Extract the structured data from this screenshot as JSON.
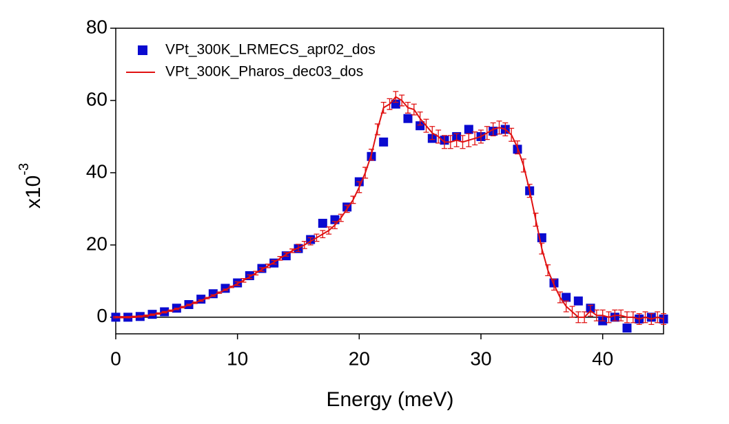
{
  "chart_data": {
    "type": "line",
    "xlabel": "Energy (meV)",
    "ylabel": {
      "base": "x10",
      "exponent": "-3"
    },
    "xlim": [
      0,
      45
    ],
    "xticks": [
      0,
      10,
      20,
      30,
      40
    ],
    "ylim": [
      -4.6,
      80
    ],
    "yticks": [
      0,
      20,
      40,
      60,
      80
    ],
    "zero_line": true,
    "legend": "upper-left",
    "series": [
      {
        "name": "VPt_300K_LRMECS_apr02_dos",
        "color": "#0a0ad0",
        "style": "markers",
        "x": [
          0,
          1,
          2,
          3,
          4,
          5,
          6,
          7,
          8,
          9,
          10,
          11,
          12,
          13,
          14,
          15,
          16,
          17,
          18,
          19,
          20,
          21,
          22,
          23,
          24,
          25,
          26,
          27,
          28,
          29,
          30,
          31,
          32,
          33,
          34,
          35,
          36,
          37,
          38,
          39,
          40,
          41,
          42,
          43,
          44,
          45
        ],
        "values": [
          0,
          0,
          0.2,
          0.8,
          1.5,
          2.5,
          3.5,
          5,
          6.5,
          8,
          9.5,
          11.5,
          13.5,
          15,
          17,
          19,
          21.5,
          26,
          27,
          30.5,
          37.5,
          44.5,
          48.5,
          59,
          55,
          53,
          49.5,
          49,
          50,
          52,
          50,
          51.5,
          52,
          46.5,
          35,
          22,
          9.5,
          5.5,
          4.5,
          2.5,
          -1,
          0,
          -3,
          -0.5,
          0,
          -0.5
        ]
      },
      {
        "name": "VPt_300K_Pharos_dec03_dos",
        "color": "#e01010",
        "style": "line",
        "x": [
          0,
          0.5,
          1,
          1.5,
          2,
          2.5,
          3,
          3.5,
          4,
          4.5,
          5,
          5.5,
          6,
          6.5,
          7,
          7.5,
          8,
          8.5,
          9,
          9.5,
          10,
          10.5,
          11,
          11.5,
          12,
          12.5,
          13,
          13.5,
          14,
          14.5,
          15,
          15.5,
          16,
          16.5,
          17,
          17.5,
          18,
          18.5,
          19,
          19.5,
          20,
          20.5,
          21,
          21.5,
          22,
          22.5,
          23,
          23.5,
          24,
          24.5,
          25,
          25.5,
          26,
          26.5,
          27,
          27.5,
          28,
          28.5,
          29,
          29.5,
          30,
          30.5,
          31,
          31.5,
          32,
          32.5,
          33,
          33.5,
          34,
          34.5,
          35,
          35.5,
          36,
          36.5,
          37,
          37.5,
          38,
          38.5,
          39,
          39.5,
          40,
          40.5,
          41,
          41.5,
          42,
          42.5,
          43,
          43.5,
          44,
          44.5,
          45
        ],
        "values": [
          0,
          0,
          0,
          0.1,
          0.2,
          0.4,
          0.7,
          1,
          1.4,
          1.8,
          2.3,
          2.8,
          3.4,
          4,
          4.6,
          5.3,
          6,
          6.8,
          7.6,
          8.4,
          9.3,
          10.2,
          11.2,
          12.2,
          13.2,
          14.2,
          15.2,
          16.3,
          17.4,
          18.4,
          19.2,
          20,
          21,
          22,
          23,
          24,
          25.5,
          27.5,
          30,
          32.5,
          36,
          40,
          45,
          52,
          58,
          59,
          61,
          60,
          58,
          57.5,
          55,
          53,
          51,
          50,
          48.5,
          48.5,
          49,
          48.5,
          49,
          49.5,
          50,
          51,
          52,
          52.5,
          52,
          50.5,
          47,
          42,
          35,
          27,
          19,
          13,
          9,
          5.5,
          3,
          1.5,
          0,
          0,
          1.8,
          0.5,
          0.5,
          0,
          0.5,
          0.5,
          0,
          0,
          -0.5,
          0,
          -0.5,
          0,
          -0.5
        ],
        "errors": [
          0.2,
          0.2,
          0.2,
          0.2,
          0.2,
          0.2,
          0.2,
          0.2,
          0.2,
          0.2,
          0.2,
          0.2,
          0.2,
          0.2,
          0.2,
          0.2,
          0.2,
          0.2,
          0.2,
          0.2,
          0.5,
          0.5,
          0.5,
          0.5,
          0.5,
          0.5,
          0.5,
          0.5,
          0.5,
          0.5,
          1,
          1,
          1,
          1,
          1,
          1,
          1,
          1,
          1,
          1,
          1.5,
          1.5,
          1.5,
          1.5,
          1.5,
          1.5,
          1.5,
          1.5,
          1.5,
          1.5,
          1.8,
          1.8,
          1.8,
          1.8,
          1.8,
          1.8,
          1.8,
          1.8,
          1.8,
          1.8,
          1.8,
          1.8,
          1.8,
          1.8,
          1.8,
          1.8,
          1.8,
          1.8,
          1.8,
          1.8,
          1.5,
          1.5,
          1.5,
          1.5,
          1.5,
          1.5,
          1.5,
          1.5,
          1.5,
          1.5,
          1.5,
          1.5,
          1.5,
          1.5,
          1.5,
          1.5,
          1.5,
          1.5,
          1.5,
          1.5,
          1.5
        ]
      }
    ]
  }
}
